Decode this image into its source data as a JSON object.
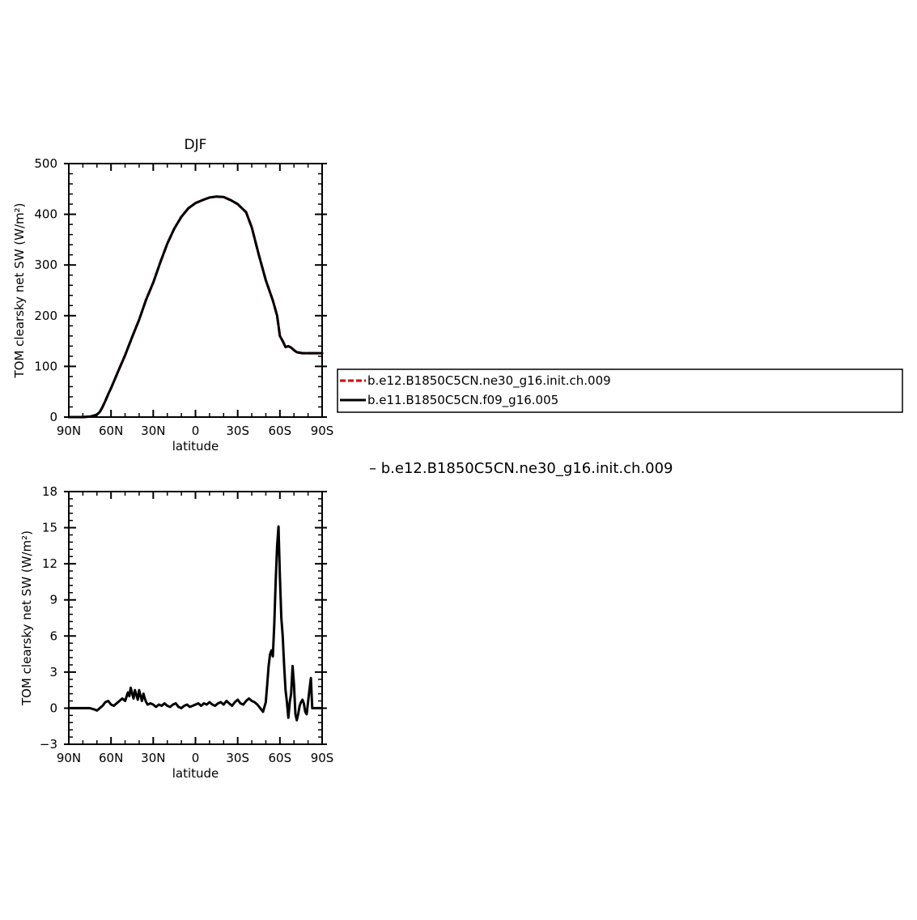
{
  "chart_data": [
    {
      "type": "line",
      "title": "DJF",
      "xlabel": "latitude",
      "ylabel": "TOM clearsky net SW (W/m²)",
      "x_ticks": [
        {
          "value": 90,
          "label": "90N"
        },
        {
          "value": 60,
          "label": "60N"
        },
        {
          "value": 30,
          "label": "30N"
        },
        {
          "value": 0,
          "label": "0"
        },
        {
          "value": -30,
          "label": "30S"
        },
        {
          "value": -60,
          "label": "60S"
        },
        {
          "value": -90,
          "label": "90S"
        }
      ],
      "xlim": [
        90,
        -90
      ],
      "ylim": [
        0,
        500
      ],
      "y_ticks": [
        0,
        100,
        200,
        300,
        400,
        500
      ],
      "grid": false,
      "legend_placement": "right",
      "series": [
        {
          "name": "b.e12.B1850C5CN.ne30_g16.init.ch.009",
          "color": "#d40000",
          "dash": "dashed",
          "x": [
            90,
            85,
            80,
            75,
            72,
            70,
            68,
            66,
            64,
            62,
            60,
            55,
            50,
            45,
            40,
            35,
            30,
            25,
            20,
            15,
            10,
            5,
            0,
            -5,
            -10,
            -15,
            -20,
            -25,
            -30,
            -33,
            -36,
            -40,
            -45,
            -50,
            -55,
            -58,
            -60,
            -62,
            -64,
            -66,
            -68,
            -70,
            -72,
            -74,
            -76,
            -78,
            -80,
            -82,
            -84,
            -86,
            -88,
            -90
          ],
          "y": [
            0,
            0,
            0,
            1,
            3,
            5,
            10,
            20,
            32,
            45,
            57,
            90,
            122,
            158,
            192,
            232,
            265,
            305,
            342,
            372,
            395,
            412,
            422,
            428,
            433,
            435,
            434,
            428,
            420,
            412,
            404,
            374,
            320,
            270,
            230,
            200,
            160,
            150,
            138,
            140,
            137,
            132,
            128,
            127,
            126,
            126,
            126,
            126,
            126,
            126,
            126,
            126
          ]
        },
        {
          "name": "b.e11.B1850C5CN.f09_g16.005",
          "color": "#000000",
          "dash": "solid",
          "x": [
            90,
            85,
            80,
            75,
            72,
            70,
            68,
            66,
            64,
            62,
            60,
            55,
            50,
            45,
            40,
            35,
            30,
            25,
            20,
            15,
            10,
            5,
            0,
            -5,
            -10,
            -15,
            -20,
            -25,
            -30,
            -33,
            -36,
            -40,
            -45,
            -50,
            -55,
            -58,
            -60,
            -62,
            -64,
            -66,
            -68,
            -70,
            -72,
            -74,
            -76,
            -78,
            -80,
            -82,
            -84,
            -86,
            -88,
            -90
          ],
          "y": [
            0,
            0,
            0,
            1,
            3,
            5,
            10,
            20,
            32,
            45,
            57,
            90,
            122,
            158,
            192,
            232,
            265,
            305,
            342,
            372,
            395,
            412,
            422,
            428,
            433,
            435,
            434,
            428,
            420,
            412,
            404,
            374,
            320,
            270,
            230,
            200,
            160,
            150,
            138,
            140,
            137,
            132,
            128,
            127,
            126,
            126,
            126,
            126,
            126,
            126,
            126,
            126
          ]
        }
      ]
    },
    {
      "type": "line",
      "xlabel": "latitude",
      "ylabel": "TOM clearsky net SW (W/m²)",
      "x_ticks": [
        {
          "value": 90,
          "label": "90N"
        },
        {
          "value": 60,
          "label": "60N"
        },
        {
          "value": 30,
          "label": "30N"
        },
        {
          "value": 0,
          "label": "0"
        },
        {
          "value": -30,
          "label": "30S"
        },
        {
          "value": -60,
          "label": "60S"
        },
        {
          "value": -90,
          "label": "90S"
        }
      ],
      "xlim": [
        90,
        -90
      ],
      "ylim": [
        -3,
        18
      ],
      "y_ticks": [
        -3,
        0,
        3,
        6,
        9,
        12,
        15,
        18
      ],
      "grid": false,
      "annotation": "–  b.e12.B1850C5CN.ne30_g16.init.ch.009",
      "series": [
        {
          "color": "#000000",
          "dash": "solid",
          "x": [
            90,
            85,
            80,
            75,
            72,
            70,
            68,
            66,
            64,
            62,
            60,
            58,
            56,
            54,
            52,
            50,
            48,
            47,
            46,
            45,
            44,
            43,
            42,
            41,
            40,
            39,
            38,
            37,
            36,
            35,
            34,
            32,
            30,
            28,
            26,
            24,
            22,
            20,
            18,
            16,
            14,
            12,
            10,
            8,
            6,
            4,
            2,
            0,
            -2,
            -4,
            -6,
            -8,
            -10,
            -12,
            -14,
            -16,
            -18,
            -20,
            -22,
            -24,
            -26,
            -28,
            -30,
            -32,
            -34,
            -36,
            -38,
            -40,
            -42,
            -44,
            -46,
            -48,
            -50,
            -51,
            -52,
            -53,
            -54,
            -55,
            -56,
            -57,
            -58,
            -59,
            -60,
            -61,
            -62,
            -63,
            -64,
            -65,
            -66,
            -67,
            -68,
            -69,
            -70,
            -71,
            -72,
            -73,
            -74,
            -75,
            -76,
            -77,
            -78,
            -79,
            -80,
            -81,
            -82,
            -83,
            -84,
            -85,
            -86,
            -87,
            -88,
            -89,
            -90
          ],
          "y": [
            0,
            0,
            0,
            0,
            -0.1,
            -0.2,
            0,
            0.2,
            0.5,
            0.6,
            0.3,
            0.2,
            0.4,
            0.6,
            0.8,
            0.6,
            1.3,
            1.0,
            1.7,
            1.2,
            0.8,
            1.5,
            1.1,
            0.7,
            1.5,
            1.0,
            0.6,
            1.2,
            0.8,
            0.5,
            0.3,
            0.4,
            0.3,
            0.1,
            0.3,
            0.2,
            0.4,
            0.2,
            0.1,
            0.3,
            0.4,
            0.1,
            0.0,
            0.2,
            0.3,
            0.1,
            0.2,
            0.3,
            0.4,
            0.2,
            0.4,
            0.3,
            0.5,
            0.3,
            0.2,
            0.4,
            0.5,
            0.3,
            0.6,
            0.4,
            0.2,
            0.5,
            0.7,
            0.4,
            0.3,
            0.6,
            0.8,
            0.6,
            0.5,
            0.3,
            0.0,
            -0.3,
            0.5,
            2.0,
            3.5,
            4.5,
            4.8,
            4.3,
            7.0,
            10.5,
            13.5,
            15.1,
            11.0,
            7.5,
            6.0,
            3.5,
            1.5,
            0.5,
            -0.8,
            0.5,
            1.2,
            3.5,
            2.0,
            -0.5,
            -1.0,
            -0.5,
            0.2,
            0.5,
            0.7,
            0.4,
            -0.3,
            -0.5,
            0.5,
            1.5,
            2.5,
            0.0,
            0.0,
            0.0,
            0.0,
            0.0,
            0.0,
            0.0,
            0.0
          ]
        }
      ]
    }
  ]
}
